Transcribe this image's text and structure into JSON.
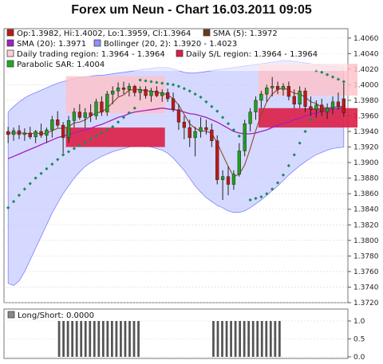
{
  "title": "Forex um Neun - Chart 16.03.2011 09:05",
  "colors": {
    "bg": "#ffffff",
    "panel": "#ffffff",
    "grid": "#d6d6d6",
    "bull": "#20a020",
    "bear": "#c01818",
    "sma5": "#8b4a2a",
    "sma20": "#a020c0",
    "bollinger": "#8080ff",
    "bollinger_fill": "#c8ccff",
    "daily_region": "#ffc0c8",
    "sl_region": "#dc1e46",
    "sar": "#1a8a5a",
    "bars": "#555555"
  },
  "legend": [
    {
      "label": "Op:1.3982, Hi:1.4002, Lo:1.3959, Cl:1.3964",
      "swatch": "#c01818"
    },
    {
      "label": "SMA (5): 1.3972",
      "swatch": "#6b3a1a"
    },
    {
      "label": "SMA (20): 1.3971",
      "swatch": "#a020c0"
    },
    {
      "label": "Bollinger (20, 2): 1.3920 - 1.4023",
      "swatch": "#9090ff"
    },
    {
      "label": "Daily trading region: 1.3964 - 1.3964",
      "swatch": "#ffd0d8"
    },
    {
      "label": "Daily S/L region: 1.3964 - 1.3964",
      "swatch": "#dc1e46"
    },
    {
      "label": "Parabolic SAR: 1.4004",
      "swatch": "#22aa22"
    }
  ],
  "lower_legend": {
    "label": "Long/Short: 0.0000",
    "swatch": "#888888"
  },
  "chart_data": [
    {
      "type": "candlestick",
      "ylim": [
        1.372,
        1.407
      ],
      "yticks": [
        "1.3720",
        "1.3740",
        "1.3760",
        "1.3780",
        "1.3800",
        "1.3820",
        "1.3840",
        "1.3860",
        "1.3880",
        "1.3900",
        "1.3920",
        "1.3940",
        "1.3960",
        "1.3980",
        "1.4000",
        "1.4020",
        "1.4040",
        "1.4060"
      ],
      "candles": [
        {
          "o": 1.394,
          "h": 1.3946,
          "l": 1.3925,
          "c": 1.3936
        },
        {
          "o": 1.3936,
          "h": 1.3945,
          "l": 1.3928,
          "c": 1.3941
        },
        {
          "o": 1.3941,
          "h": 1.3948,
          "l": 1.393,
          "c": 1.3936
        },
        {
          "o": 1.3936,
          "h": 1.3944,
          "l": 1.3928,
          "c": 1.3938
        },
        {
          "o": 1.3938,
          "h": 1.3946,
          "l": 1.393,
          "c": 1.3933
        },
        {
          "o": 1.3933,
          "h": 1.3942,
          "l": 1.3925,
          "c": 1.394
        },
        {
          "o": 1.394,
          "h": 1.395,
          "l": 1.3932,
          "c": 1.3935
        },
        {
          "o": 1.3935,
          "h": 1.3945,
          "l": 1.3925,
          "c": 1.3942
        },
        {
          "o": 1.3942,
          "h": 1.396,
          "l": 1.3932,
          "c": 1.3955
        },
        {
          "o": 1.3955,
          "h": 1.3966,
          "l": 1.3945,
          "c": 1.3948
        },
        {
          "o": 1.3948,
          "h": 1.3952,
          "l": 1.3912,
          "c": 1.3932
        },
        {
          "o": 1.3932,
          "h": 1.396,
          "l": 1.3925,
          "c": 1.3954
        },
        {
          "o": 1.3954,
          "h": 1.397,
          "l": 1.3945,
          "c": 1.3965
        },
        {
          "o": 1.3965,
          "h": 1.3975,
          "l": 1.3955,
          "c": 1.3958
        },
        {
          "o": 1.3958,
          "h": 1.397,
          "l": 1.3945,
          "c": 1.3964
        },
        {
          "o": 1.3964,
          "h": 1.3975,
          "l": 1.3952,
          "c": 1.396
        },
        {
          "o": 1.396,
          "h": 1.3982,
          "l": 1.3955,
          "c": 1.3978
        },
        {
          "o": 1.3978,
          "h": 1.3985,
          "l": 1.396,
          "c": 1.3965
        },
        {
          "o": 1.3965,
          "h": 1.3992,
          "l": 1.396,
          "c": 1.3988
        },
        {
          "o": 1.3988,
          "h": 1.3998,
          "l": 1.3975,
          "c": 1.3992
        },
        {
          "o": 1.3992,
          "h": 1.4003,
          "l": 1.3985,
          "c": 1.3996
        },
        {
          "o": 1.3996,
          "h": 1.4004,
          "l": 1.3988,
          "c": 1.3994
        },
        {
          "o": 1.3994,
          "h": 1.4002,
          "l": 1.3985,
          "c": 1.3998
        },
        {
          "o": 1.3998,
          "h": 1.4,
          "l": 1.3985,
          "c": 1.399
        },
        {
          "o": 1.399,
          "h": 1.3998,
          "l": 1.398,
          "c": 1.3994
        },
        {
          "o": 1.3994,
          "h": 1.3998,
          "l": 1.3982,
          "c": 1.3986
        },
        {
          "o": 1.3986,
          "h": 1.3996,
          "l": 1.3978,
          "c": 1.3992
        },
        {
          "o": 1.3992,
          "h": 1.3998,
          "l": 1.3984,
          "c": 1.3986
        },
        {
          "o": 1.3986,
          "h": 1.3994,
          "l": 1.3978,
          "c": 1.399
        },
        {
          "o": 1.399,
          "h": 1.3995,
          "l": 1.3978,
          "c": 1.3982
        },
        {
          "o": 1.3982,
          "h": 1.399,
          "l": 1.3965,
          "c": 1.3968
        },
        {
          "o": 1.3968,
          "h": 1.3975,
          "l": 1.3942,
          "c": 1.3952
        },
        {
          "o": 1.3952,
          "h": 1.396,
          "l": 1.393,
          "c": 1.3945
        },
        {
          "o": 1.3945,
          "h": 1.3955,
          "l": 1.392,
          "c": 1.3932
        },
        {
          "o": 1.3932,
          "h": 1.3946,
          "l": 1.3908,
          "c": 1.394
        },
        {
          "o": 1.394,
          "h": 1.3958,
          "l": 1.3932,
          "c": 1.3945
        },
        {
          "o": 1.3945,
          "h": 1.3955,
          "l": 1.3936,
          "c": 1.3942
        },
        {
          "o": 1.3942,
          "h": 1.395,
          "l": 1.392,
          "c": 1.3928
        },
        {
          "o": 1.3928,
          "h": 1.3935,
          "l": 1.3872,
          "c": 1.3878
        },
        {
          "o": 1.3878,
          "h": 1.389,
          "l": 1.3852,
          "c": 1.3882
        },
        {
          "o": 1.3882,
          "h": 1.3895,
          "l": 1.3858,
          "c": 1.3872
        },
        {
          "o": 1.3872,
          "h": 1.389,
          "l": 1.3865,
          "c": 1.3885
        },
        {
          "o": 1.3885,
          "h": 1.3925,
          "l": 1.3882,
          "c": 1.3915
        },
        {
          "o": 1.3915,
          "h": 1.3955,
          "l": 1.3908,
          "c": 1.395
        },
        {
          "o": 1.395,
          "h": 1.397,
          "l": 1.394,
          "c": 1.3965
        },
        {
          "o": 1.3965,
          "h": 1.3985,
          "l": 1.3955,
          "c": 1.398
        },
        {
          "o": 1.398,
          "h": 1.3992,
          "l": 1.397,
          "c": 1.3988
        },
        {
          "o": 1.3988,
          "h": 1.4,
          "l": 1.3978,
          "c": 1.3996
        },
        {
          "o": 1.3996,
          "h": 1.401,
          "l": 1.3985,
          "c": 1.3998
        },
        {
          "o": 1.3998,
          "h": 1.4004,
          "l": 1.3988,
          "c": 1.3994
        },
        {
          "o": 1.3994,
          "h": 1.4002,
          "l": 1.3986,
          "c": 1.3998
        },
        {
          "o": 1.3998,
          "h": 1.4004,
          "l": 1.398,
          "c": 1.3985
        },
        {
          "o": 1.3985,
          "h": 1.3994,
          "l": 1.397,
          "c": 1.3975
        },
        {
          "o": 1.3975,
          "h": 1.3998,
          "l": 1.397,
          "c": 1.3992
        },
        {
          "o": 1.3992,
          "h": 1.3996,
          "l": 1.3965,
          "c": 1.3972
        },
        {
          "o": 1.3972,
          "h": 1.3985,
          "l": 1.396,
          "c": 1.3968
        },
        {
          "o": 1.3968,
          "h": 1.398,
          "l": 1.3958,
          "c": 1.3974
        },
        {
          "o": 1.3974,
          "h": 1.3982,
          "l": 1.396,
          "c": 1.3965
        },
        {
          "o": 1.3965,
          "h": 1.3976,
          "l": 1.3956,
          "c": 1.397
        },
        {
          "o": 1.397,
          "h": 1.3985,
          "l": 1.3962,
          "c": 1.3978
        },
        {
          "o": 1.3978,
          "h": 1.399,
          "l": 1.3968,
          "c": 1.3972
        },
        {
          "o": 1.3982,
          "h": 1.4002,
          "l": 1.3959,
          "c": 1.3964
        }
      ],
      "sma5": [
        1.3938,
        1.3938,
        1.3938,
        1.3938,
        1.3937,
        1.3938,
        1.3937,
        1.3938,
        1.3941,
        1.3944,
        1.3944,
        1.3946,
        1.3951,
        1.3952,
        1.3955,
        1.396,
        1.3964,
        1.3965,
        1.397,
        1.3977,
        1.3984,
        1.3987,
        1.3993,
        1.3994,
        1.3994,
        1.3992,
        1.3992,
        1.399,
        1.3989,
        1.3987,
        1.3982,
        1.3974,
        1.3962,
        1.395,
        1.3944,
        1.3941,
        1.394,
        1.3938,
        1.3925,
        1.391,
        1.3895,
        1.3882,
        1.3885,
        1.3897,
        1.3918,
        1.3941,
        1.3962,
        1.3978,
        1.3988,
        1.3994,
        1.3996,
        1.3993,
        1.3989,
        1.3988,
        1.3984,
        1.3978,
        1.3976,
        1.3971,
        1.397,
        1.3971,
        1.3972,
        1.3972
      ],
      "sma20": [
        1.3905,
        1.3908,
        1.3911,
        1.3914,
        1.3917,
        1.392,
        1.3923,
        1.3926,
        1.3929,
        1.3932,
        1.3934,
        1.3936,
        1.3938,
        1.394,
        1.3942,
        1.3944,
        1.3947,
        1.3949,
        1.3952,
        1.3955,
        1.3958,
        1.396,
        1.3963,
        1.3965,
        1.3966,
        1.3967,
        1.3968,
        1.3969,
        1.397,
        1.3969,
        1.3968,
        1.3967,
        1.3965,
        1.3963,
        1.3962,
        1.396,
        1.3958,
        1.3955,
        1.3952,
        1.3948,
        1.3944,
        1.394,
        1.3938,
        1.3937,
        1.3937,
        1.3938,
        1.394,
        1.3942,
        1.3945,
        1.3948,
        1.395,
        1.3952,
        1.3955,
        1.3957,
        1.396,
        1.3962,
        1.3964,
        1.3966,
        1.3968,
        1.3969,
        1.397,
        1.3971
      ],
      "boll_upper": [
        1.3965,
        1.3972,
        1.3978,
        1.3983,
        1.3987,
        1.399,
        1.3993,
        1.3996,
        1.3999,
        1.4002,
        1.4004,
        1.4006,
        1.4008,
        1.4009,
        1.401,
        1.4011,
        1.4012,
        1.4012,
        1.4013,
        1.4014,
        1.4015,
        1.4016,
        1.4017,
        1.4018,
        1.4019,
        1.402,
        1.4021,
        1.4022,
        1.4022,
        1.4022,
        1.402,
        1.4018,
        1.4016,
        1.4015,
        1.4015,
        1.4016,
        1.4017,
        1.4018,
        1.4019,
        1.402,
        1.4021,
        1.4022,
        1.4023,
        1.4024,
        1.4025,
        1.4026,
        1.4027,
        1.4028,
        1.4029,
        1.403,
        1.4031,
        1.4031,
        1.403,
        1.4029,
        1.4028,
        1.4027,
        1.4026,
        1.4025,
        1.4024,
        1.4023,
        1.4023,
        1.4023
      ],
      "boll_lower": [
        1.3745,
        1.3742,
        1.3748,
        1.376,
        1.3775,
        1.379,
        1.3805,
        1.382,
        1.3835,
        1.3848,
        1.386,
        1.387,
        1.388,
        1.3888,
        1.3895,
        1.39,
        1.3904,
        1.3908,
        1.3911,
        1.3914,
        1.3916,
        1.3918,
        1.392,
        1.3922,
        1.3922,
        1.3921,
        1.392,
        1.3918,
        1.3916,
        1.3912,
        1.3906,
        1.3898,
        1.389,
        1.388,
        1.387,
        1.3862,
        1.3855,
        1.385,
        1.3845,
        1.3842,
        1.3838,
        1.3836,
        1.3836,
        1.3838,
        1.3842,
        1.3847,
        1.3852,
        1.3858,
        1.3864,
        1.387,
        1.3877,
        1.3884,
        1.389,
        1.3896,
        1.3901,
        1.3906,
        1.391,
        1.3913,
        1.3916,
        1.3918,
        1.3919,
        1.392
      ],
      "sar": [
        1.3842,
        1.385,
        1.3858,
        1.3866,
        1.3873,
        1.388,
        1.3886,
        1.3892,
        1.3898,
        1.3904,
        1.391,
        1.3914,
        1.3918,
        1.3922,
        1.3926,
        1.393,
        1.3934,
        1.3938,
        1.3942,
        1.3946,
        1.3952,
        1.3958,
        1.3964,
        1.397,
        1.4006,
        1.4005,
        1.4004,
        1.4003,
        1.4002,
        1.4001,
        1.4,
        1.3998,
        1.3995,
        1.3992,
        1.3988,
        1.3984,
        1.3978,
        1.3972,
        1.3966,
        1.3958,
        1.395,
        1.3942,
        1.3934,
        1.3926,
        1.3852,
        1.3854,
        1.3856,
        1.386,
        1.3866,
        1.3874,
        1.3884,
        1.3896,
        1.391,
        1.3925,
        1.394,
        1.3955,
        1.4018,
        1.4016,
        1.4013,
        1.401,
        1.4007,
        1.4004
      ],
      "daily_regions": [
        {
          "from": 11,
          "to": 28,
          "low": 1.3963,
          "high": 1.4011
        },
        {
          "from": 46,
          "to": 63,
          "low": 1.3986,
          "high": 1.4027
        }
      ],
      "sl_regions": [
        {
          "from": 11,
          "to": 28,
          "low": 1.392,
          "high": 1.3945
        },
        {
          "from": 46,
          "to": 63,
          "low": 1.3945,
          "high": 1.397
        }
      ]
    },
    {
      "type": "bar",
      "ylim": [
        0,
        1
      ],
      "yticks": [
        "0.0",
        "0.5",
        "1.0"
      ],
      "values": [
        0,
        0,
        0,
        0,
        0,
        0,
        0,
        0,
        0,
        0,
        0,
        0,
        1,
        1,
        1,
        1,
        1,
        1,
        1,
        1,
        1,
        1,
        1,
        1,
        1,
        1,
        1,
        1,
        1,
        1,
        1,
        0,
        0,
        0,
        0,
        0,
        0,
        0,
        0,
        0,
        0,
        0,
        0,
        0,
        0,
        0,
        0,
        1,
        1,
        1,
        1,
        1,
        1,
        1,
        1,
        1,
        1,
        1,
        1,
        1,
        1,
        1,
        1,
        0,
        0,
        0,
        0,
        0,
        0,
        0,
        0,
        0,
        0,
        0,
        0,
        0,
        0,
        0
      ]
    }
  ]
}
